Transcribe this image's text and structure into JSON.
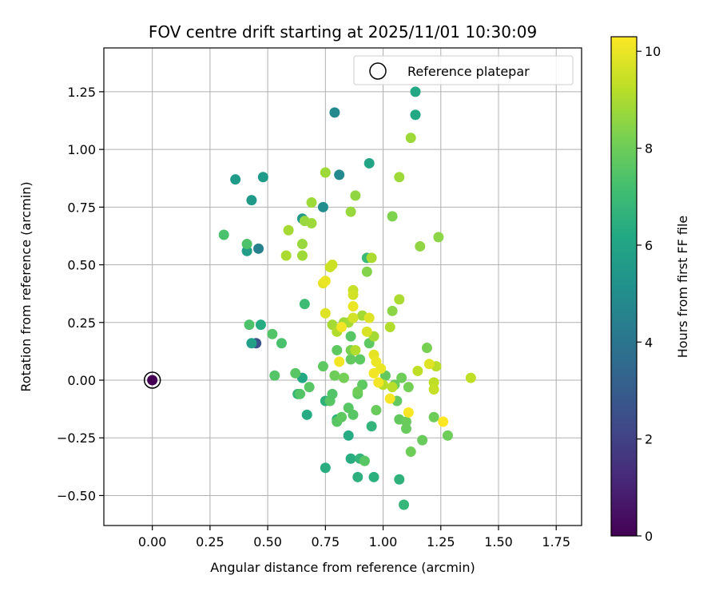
{
  "chart_data": {
    "type": "scatter",
    "title": "FOV centre drift starting at 2025/11/01 10:30:09",
    "xlabel": "Angular distance from reference (arcmin)",
    "ylabel": "Rotation from reference (arcmin)",
    "xlim": [
      -0.21,
      1.86
    ],
    "ylim": [
      -0.63,
      1.44
    ],
    "x_ticks": [
      0.0,
      0.25,
      0.5,
      0.75,
      1.0,
      1.25,
      1.5,
      1.75
    ],
    "x_tick_labels": [
      "0.00",
      "0.25",
      "0.50",
      "0.75",
      "1.00",
      "1.25",
      "1.50",
      "1.75"
    ],
    "y_ticks": [
      -0.5,
      -0.25,
      0.0,
      0.25,
      0.5,
      0.75,
      1.0,
      1.25
    ],
    "y_tick_labels": [
      "−0.50",
      "−0.25",
      "0.00",
      "0.25",
      "0.50",
      "0.75",
      "1.00",
      "1.25"
    ],
    "grid": true,
    "legend": {
      "position": "top-right",
      "entries": [
        {
          "label": "Reference platepar",
          "marker": "hollow-circle"
        }
      ]
    },
    "reference_point": {
      "x": 0.0,
      "y": 0.0
    },
    "colorbar": {
      "label": "Hours from first FF file",
      "range": [
        0,
        10.3
      ],
      "ticks": [
        0,
        2,
        4,
        6,
        8,
        10
      ],
      "tick_labels": [
        "0",
        "2",
        "4",
        "6",
        "8",
        "10"
      ],
      "colormap": "viridis"
    },
    "series": [
      {
        "name": "FOV centre drift",
        "points": [
          {
            "x": 0.0,
            "y": 0.0,
            "c": 0.0
          },
          {
            "x": 0.45,
            "y": 0.16,
            "c": 2.5
          },
          {
            "x": 0.79,
            "y": 1.16,
            "c": 4.8
          },
          {
            "x": 0.81,
            "y": 0.89,
            "c": 4.8
          },
          {
            "x": 0.46,
            "y": 0.57,
            "c": 4.5
          },
          {
            "x": 0.74,
            "y": 0.75,
            "c": 5.0
          },
          {
            "x": 0.36,
            "y": 0.87,
            "c": 5.6
          },
          {
            "x": 0.48,
            "y": 0.88,
            "c": 5.6
          },
          {
            "x": 0.43,
            "y": 0.78,
            "c": 5.5
          },
          {
            "x": 0.41,
            "y": 0.56,
            "c": 5.7
          },
          {
            "x": 0.43,
            "y": 0.16,
            "c": 5.8
          },
          {
            "x": 0.65,
            "y": 0.7,
            "c": 5.5
          },
          {
            "x": 0.94,
            "y": 0.94,
            "c": 6.0
          },
          {
            "x": 1.14,
            "y": 1.25,
            "c": 6.2
          },
          {
            "x": 1.14,
            "y": 1.15,
            "c": 6.2
          },
          {
            "x": 0.47,
            "y": 0.24,
            "c": 6.3
          },
          {
            "x": 0.65,
            "y": 0.01,
            "c": 6.2
          },
          {
            "x": 0.67,
            "y": -0.15,
            "c": 6.3
          },
          {
            "x": 0.75,
            "y": -0.38,
            "c": 6.4
          },
          {
            "x": 0.85,
            "y": -0.24,
            "c": 6.3
          },
          {
            "x": 0.86,
            "y": -0.34,
            "c": 6.4
          },
          {
            "x": 0.89,
            "y": -0.42,
            "c": 6.5
          },
          {
            "x": 0.9,
            "y": -0.34,
            "c": 6.7
          },
          {
            "x": 0.96,
            "y": -0.42,
            "c": 6.5
          },
          {
            "x": 1.07,
            "y": -0.43,
            "c": 6.6
          },
          {
            "x": 1.09,
            "y": -0.54,
            "c": 6.8
          },
          {
            "x": 0.75,
            "y": -0.09,
            "c": 6.6
          },
          {
            "x": 0.8,
            "y": -0.17,
            "c": 6.6
          },
          {
            "x": 0.95,
            "y": -0.2,
            "c": 6.7
          },
          {
            "x": 0.63,
            "y": -0.06,
            "c": 6.8
          },
          {
            "x": 0.93,
            "y": 0.53,
            "c": 6.9
          },
          {
            "x": 0.66,
            "y": 0.33,
            "c": 7.0
          },
          {
            "x": 0.31,
            "y": 0.63,
            "c": 7.3
          },
          {
            "x": 0.41,
            "y": 0.59,
            "c": 7.4
          },
          {
            "x": 0.42,
            "y": 0.24,
            "c": 7.4
          },
          {
            "x": 0.52,
            "y": 0.2,
            "c": 7.5
          },
          {
            "x": 0.56,
            "y": 0.16,
            "c": 7.3
          },
          {
            "x": 0.53,
            "y": 0.02,
            "c": 7.5
          },
          {
            "x": 0.62,
            "y": 0.03,
            "c": 7.6
          },
          {
            "x": 0.64,
            "y": -0.06,
            "c": 7.5
          },
          {
            "x": 0.68,
            "y": -0.03,
            "c": 7.6
          },
          {
            "x": 0.74,
            "y": 0.06,
            "c": 7.7
          },
          {
            "x": 0.77,
            "y": -0.09,
            "c": 7.6
          },
          {
            "x": 0.78,
            "y": -0.06,
            "c": 7.5
          },
          {
            "x": 0.8,
            "y": -0.18,
            "c": 7.6
          },
          {
            "x": 0.82,
            "y": -0.16,
            "c": 7.7
          },
          {
            "x": 0.85,
            "y": -0.12,
            "c": 7.6
          },
          {
            "x": 0.87,
            "y": -0.15,
            "c": 7.6
          },
          {
            "x": 0.89,
            "y": -0.06,
            "c": 7.7
          },
          {
            "x": 0.91,
            "y": -0.02,
            "c": 7.7
          },
          {
            "x": 0.92,
            "y": -0.35,
            "c": 7.6
          },
          {
            "x": 0.94,
            "y": 0.16,
            "c": 7.7
          },
          {
            "x": 0.86,
            "y": 0.19,
            "c": 7.6
          },
          {
            "x": 0.8,
            "y": 0.13,
            "c": 7.7
          },
          {
            "x": 0.86,
            "y": 0.09,
            "c": 7.8
          },
          {
            "x": 0.9,
            "y": 0.09,
            "c": 7.7
          },
          {
            "x": 0.97,
            "y": -0.13,
            "c": 7.9
          },
          {
            "x": 1.01,
            "y": 0.02,
            "c": 7.8
          },
          {
            "x": 1.05,
            "y": -0.02,
            "c": 7.9
          },
          {
            "x": 1.06,
            "y": -0.09,
            "c": 7.8
          },
          {
            "x": 1.07,
            "y": -0.17,
            "c": 7.8
          },
          {
            "x": 1.1,
            "y": -0.21,
            "c": 7.9
          },
          {
            "x": 1.1,
            "y": -0.18,
            "c": 7.9
          },
          {
            "x": 1.12,
            "y": -0.31,
            "c": 8.0
          },
          {
            "x": 1.17,
            "y": -0.26,
            "c": 7.9
          },
          {
            "x": 1.22,
            "y": -0.16,
            "c": 8.0
          },
          {
            "x": 1.28,
            "y": -0.24,
            "c": 8.0
          },
          {
            "x": 1.08,
            "y": 0.01,
            "c": 8.0
          },
          {
            "x": 1.11,
            "y": -0.03,
            "c": 8.1
          },
          {
            "x": 1.19,
            "y": 0.14,
            "c": 8.2
          },
          {
            "x": 0.79,
            "y": 0.02,
            "c": 8.0
          },
          {
            "x": 0.83,
            "y": 0.01,
            "c": 8.1
          },
          {
            "x": 0.86,
            "y": 0.13,
            "c": 8.2
          },
          {
            "x": 0.89,
            "y": -0.05,
            "c": 8.0
          },
          {
            "x": 0.93,
            "y": 0.47,
            "c": 8.4
          },
          {
            "x": 1.04,
            "y": 0.71,
            "c": 8.3
          },
          {
            "x": 1.04,
            "y": 0.3,
            "c": 8.5
          },
          {
            "x": 1.07,
            "y": 0.88,
            "c": 8.8
          },
          {
            "x": 1.12,
            "y": 1.05,
            "c": 8.8
          },
          {
            "x": 1.16,
            "y": 0.58,
            "c": 8.6
          },
          {
            "x": 1.24,
            "y": 0.62,
            "c": 8.5
          },
          {
            "x": 0.88,
            "y": 0.8,
            "c": 8.6
          },
          {
            "x": 0.86,
            "y": 0.73,
            "c": 8.7
          },
          {
            "x": 0.75,
            "y": 0.9,
            "c": 8.8
          },
          {
            "x": 0.69,
            "y": 0.77,
            "c": 8.8
          },
          {
            "x": 0.66,
            "y": 0.69,
            "c": 8.7
          },
          {
            "x": 0.69,
            "y": 0.68,
            "c": 8.8
          },
          {
            "x": 0.59,
            "y": 0.65,
            "c": 8.9
          },
          {
            "x": 0.65,
            "y": 0.59,
            "c": 8.7
          },
          {
            "x": 0.58,
            "y": 0.54,
            "c": 9.0
          },
          {
            "x": 0.65,
            "y": 0.54,
            "c": 8.8
          },
          {
            "x": 0.95,
            "y": 0.53,
            "c": 9.0
          },
          {
            "x": 0.78,
            "y": 0.24,
            "c": 8.9
          },
          {
            "x": 0.83,
            "y": 0.25,
            "c": 8.8
          },
          {
            "x": 0.85,
            "y": 0.25,
            "c": 8.9
          },
          {
            "x": 0.91,
            "y": 0.28,
            "c": 8.9
          },
          {
            "x": 0.96,
            "y": 0.19,
            "c": 8.9
          },
          {
            "x": 1.07,
            "y": 0.35,
            "c": 9.0
          },
          {
            "x": 1.03,
            "y": 0.23,
            "c": 9.1
          },
          {
            "x": 0.8,
            "y": 0.21,
            "c": 9.1
          },
          {
            "x": 0.88,
            "y": 0.13,
            "c": 9.1
          },
          {
            "x": 1.0,
            "y": -0.02,
            "c": 9.2
          },
          {
            "x": 1.04,
            "y": -0.03,
            "c": 9.2
          },
          {
            "x": 1.15,
            "y": 0.04,
            "c": 9.3
          },
          {
            "x": 1.23,
            "y": 0.06,
            "c": 9.2
          },
          {
            "x": 1.22,
            "y": -0.01,
            "c": 9.3
          },
          {
            "x": 1.22,
            "y": -0.04,
            "c": 9.4
          },
          {
            "x": 1.38,
            "y": 0.01,
            "c": 9.3
          },
          {
            "x": 0.77,
            "y": 0.49,
            "c": 9.5
          },
          {
            "x": 0.78,
            "y": 0.5,
            "c": 9.5
          },
          {
            "x": 0.87,
            "y": 0.39,
            "c": 9.4
          },
          {
            "x": 0.87,
            "y": 0.37,
            "c": 9.6
          },
          {
            "x": 0.87,
            "y": 0.27,
            "c": 9.6
          },
          {
            "x": 0.93,
            "y": 0.21,
            "c": 9.7
          },
          {
            "x": 0.94,
            "y": 0.27,
            "c": 9.8
          },
          {
            "x": 0.75,
            "y": 0.29,
            "c": 9.8
          },
          {
            "x": 0.74,
            "y": 0.42,
            "c": 9.9
          },
          {
            "x": 0.75,
            "y": 0.43,
            "c": 10.0
          },
          {
            "x": 0.87,
            "y": 0.32,
            "c": 10.0
          },
          {
            "x": 0.82,
            "y": 0.23,
            "c": 10.1
          },
          {
            "x": 0.96,
            "y": 0.11,
            "c": 9.9
          },
          {
            "x": 0.97,
            "y": 0.08,
            "c": 10.0
          },
          {
            "x": 0.99,
            "y": 0.05,
            "c": 10.0
          },
          {
            "x": 0.96,
            "y": 0.03,
            "c": 10.1
          },
          {
            "x": 0.98,
            "y": -0.01,
            "c": 10.1
          },
          {
            "x": 0.81,
            "y": 0.08,
            "c": 10.1
          },
          {
            "x": 1.03,
            "y": -0.08,
            "c": 10.2
          },
          {
            "x": 1.11,
            "y": -0.14,
            "c": 10.2
          },
          {
            "x": 1.2,
            "y": 0.07,
            "c": 9.8
          },
          {
            "x": 1.26,
            "y": -0.18,
            "c": 10.3
          }
        ]
      }
    ]
  }
}
